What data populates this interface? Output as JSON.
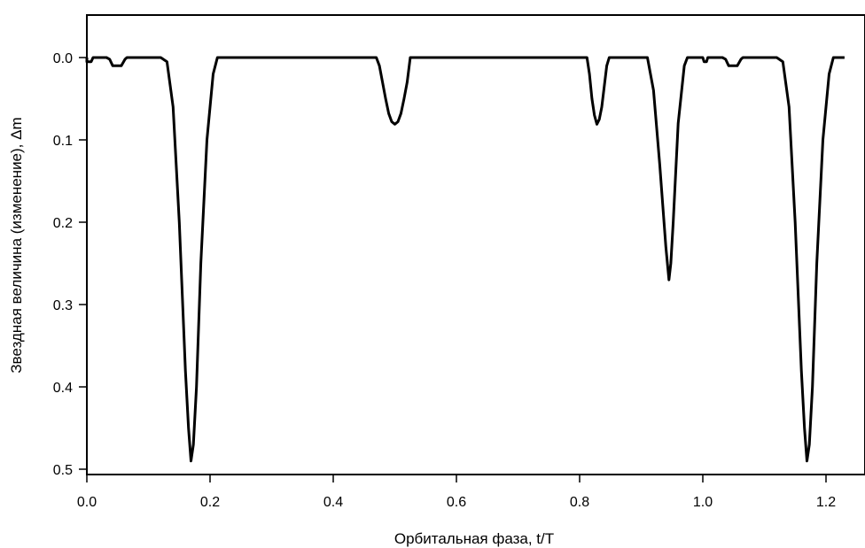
{
  "chart_data": {
    "type": "line",
    "title": "",
    "xlabel": "Орбитальная фаза, t/T",
    "ylabel": "Звездная величина (изменение), Δm",
    "xlim": [
      0.0,
      1.23
    ],
    "ylim": [
      0.0,
      0.5
    ],
    "y_inverted": true,
    "grid": false,
    "x_ticks": [
      0.0,
      0.2,
      0.4,
      0.6,
      0.8,
      1.0,
      1.2
    ],
    "x_tick_labels": [
      "0.0",
      "0.2",
      "0.4",
      "0.6",
      "0.8",
      "1.0",
      "1.2"
    ],
    "y_ticks": [
      0.0,
      0.1,
      0.2,
      0.3,
      0.4,
      0.5
    ],
    "y_tick_labels": [
      "0.0",
      "0.1",
      "0.2",
      "0.3",
      "0.4",
      "0.5"
    ],
    "series": [
      {
        "color": "#000000",
        "x": [
          0.0,
          0.0,
          0.003,
          0.007,
          0.01,
          0.028,
          0.032,
          0.037,
          0.042,
          0.048,
          0.056,
          0.062,
          0.065,
          0.068,
          0.12,
          0.13,
          0.14,
          0.15,
          0.16,
          0.165,
          0.169,
          0.173,
          0.178,
          0.185,
          0.195,
          0.205,
          0.212,
          0.47,
          0.475,
          0.48,
          0.485,
          0.49,
          0.495,
          0.5,
          0.505,
          0.51,
          0.515,
          0.52,
          0.525,
          0.812,
          0.816,
          0.82,
          0.824,
          0.828,
          0.832,
          0.836,
          0.84,
          0.844,
          0.848,
          0.91,
          0.92,
          0.93,
          0.94,
          0.945,
          0.948,
          0.952,
          0.96,
          0.97,
          0.975,
          0.978,
          0.98,
          0.99,
          1.0,
          1.002,
          1.006,
          1.008,
          1.028,
          1.032,
          1.037,
          1.042,
          1.048,
          1.056,
          1.062,
          1.065,
          1.068,
          1.12,
          1.13,
          1.14,
          1.15,
          1.16,
          1.165,
          1.169,
          1.173,
          1.178,
          1.185,
          1.195,
          1.205,
          1.212,
          1.23
        ],
        "y": [
          0.0,
          0.005,
          0.005,
          0.005,
          0.0,
          0.0,
          0.0,
          0.002,
          0.01,
          0.01,
          0.01,
          0.002,
          0.0,
          0.0,
          0.0,
          0.005,
          0.06,
          0.2,
          0.38,
          0.45,
          0.49,
          0.47,
          0.4,
          0.25,
          0.1,
          0.02,
          0.0,
          0.0,
          0.01,
          0.03,
          0.05,
          0.068,
          0.078,
          0.081,
          0.078,
          0.068,
          0.05,
          0.03,
          0.0,
          0.0,
          0.02,
          0.05,
          0.07,
          0.081,
          0.075,
          0.06,
          0.035,
          0.01,
          0.0,
          0.0,
          0.04,
          0.13,
          0.23,
          0.27,
          0.25,
          0.2,
          0.08,
          0.01,
          0.0,
          0.0,
          0.0,
          0.0,
          0.0,
          0.005,
          0.005,
          0.0,
          0.0,
          0.0,
          0.002,
          0.01,
          0.01,
          0.01,
          0.002,
          0.0,
          0.0,
          0.0,
          0.005,
          0.06,
          0.2,
          0.38,
          0.45,
          0.49,
          0.47,
          0.4,
          0.25,
          0.1,
          0.02,
          0.0,
          0.0
        ]
      }
    ]
  }
}
